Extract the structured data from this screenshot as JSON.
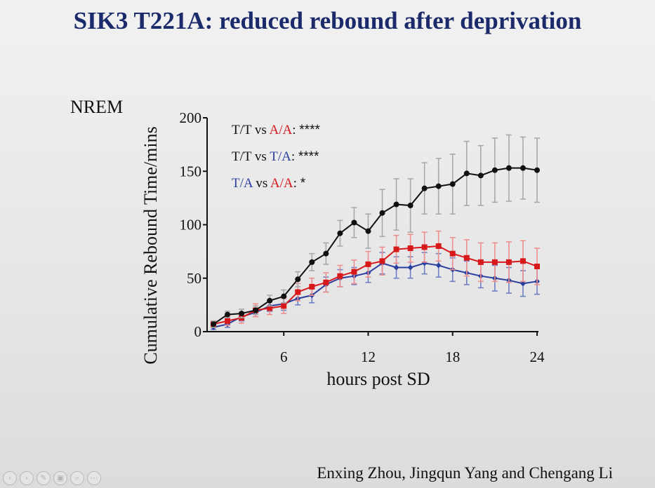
{
  "slide": {
    "title": "SIK3 T221A: reduced rebound after deprivation",
    "authors": "Enxing Zhou, Jingqun Yang and Chengang Li"
  },
  "nav_icons": [
    "previous-icon",
    "next-icon",
    "pen-icon",
    "screen-icon",
    "zoom-icon",
    "more-icon"
  ],
  "colors": {
    "title": "#1b2a6b",
    "TT": "#111111",
    "TA": "#2b3f9e",
    "AA": "#d7191c",
    "TT_err": "#a9a9a9",
    "TA_err": "#6f7fc4",
    "AA_err": "#ee8f8f"
  },
  "chart_data": {
    "type": "line",
    "panel_label": "NREM",
    "xlabel": "hours post SD",
    "ylabel": "Cumulative Rebound Time/mins",
    "xlim": [
      1,
      24
    ],
    "ylim": [
      0,
      200
    ],
    "xticks": [
      6,
      12,
      18,
      24
    ],
    "yticks": [
      0,
      50,
      100,
      150,
      200
    ],
    "grid": false,
    "legend": [
      {
        "a": "T/T",
        "b": "A/A",
        "sig": "****",
        "a_color": "TT",
        "b_color": "AA"
      },
      {
        "a": "T/T",
        "b": "T/A",
        "sig": "****",
        "a_color": "TT",
        "b_color": "TA"
      },
      {
        "a": "T/A",
        "b": "A/A",
        "sig": "*",
        "a_color": "TA",
        "b_color": "AA"
      }
    ],
    "legend_vs": "vs",
    "legend_placement": "top-left",
    "x": [
      1,
      2,
      3,
      4,
      5,
      6,
      7,
      8,
      9,
      10,
      11,
      12,
      13,
      14,
      15,
      16,
      17,
      18,
      19,
      20,
      21,
      22,
      23,
      24
    ],
    "series": [
      {
        "name": "T/T",
        "color": "TT",
        "err_color": "TT_err",
        "marker": "circle",
        "values": [
          7,
          16,
          17,
          20,
          29,
          33,
          49,
          65,
          73,
          92,
          102,
          94,
          111,
          119,
          118,
          134,
          136,
          138,
          148,
          146,
          151,
          153,
          153,
          151
        ],
        "err": [
          3,
          3,
          4,
          4,
          5,
          6,
          7,
          8,
          10,
          12,
          14,
          16,
          22,
          24,
          25,
          24,
          26,
          28,
          30,
          28,
          30,
          31,
          29,
          30
        ]
      },
      {
        "name": "A/A",
        "color": "AA",
        "err_color": "AA_err",
        "marker": "square",
        "values": [
          7,
          10,
          13,
          20,
          22,
          24,
          37,
          42,
          46,
          52,
          56,
          63,
          66,
          77,
          78,
          79,
          80,
          73,
          69,
          65,
          65,
          65,
          66,
          61
        ],
        "err": [
          3,
          4,
          5,
          6,
          6,
          7,
          8,
          8,
          9,
          10,
          11,
          12,
          13,
          13,
          13,
          14,
          14,
          15,
          17,
          18,
          18,
          19,
          19,
          17
        ]
      },
      {
        "name": "T/A",
        "color": "TA",
        "err_color": "TA_err",
        "marker": "diamond",
        "values": [
          4,
          7,
          14,
          18,
          24,
          26,
          31,
          34,
          44,
          50,
          52,
          55,
          64,
          60,
          60,
          64,
          62,
          58,
          55,
          52,
          50,
          48,
          45,
          47
        ],
        "err": [
          2,
          3,
          4,
          4,
          5,
          6,
          6,
          7,
          7,
          8,
          8,
          9,
          10,
          10,
          10,
          10,
          11,
          11,
          11,
          11,
          12,
          12,
          12,
          12
        ]
      }
    ]
  }
}
